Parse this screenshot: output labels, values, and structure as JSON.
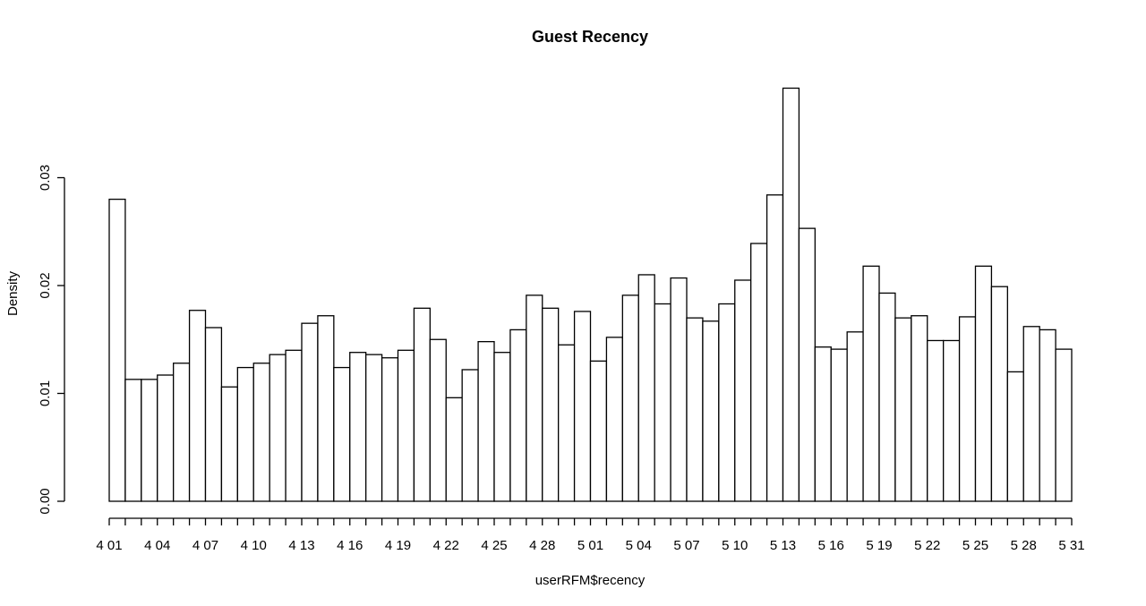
{
  "chart_data": {
    "type": "bar",
    "title": "Guest Recency",
    "xlabel": "userRFM$recency",
    "ylabel": "Density",
    "ylim": [
      0,
      0.0385
    ],
    "y_ticks": [
      "0.00",
      "0.01",
      "0.02",
      "0.03"
    ],
    "y_tick_values": [
      0,
      0.01,
      0.02,
      0.03
    ],
    "x_tick_labels": [
      "4 01",
      "4 04",
      "4 07",
      "4 10",
      "4 13",
      "4 16",
      "4 19",
      "4 22",
      "4 25",
      "4 28",
      "5 01",
      "5 04",
      "5 07",
      "5 10",
      "5 13",
      "5 16",
      "5 19",
      "5 22",
      "5 25",
      "5 28",
      "5 31"
    ],
    "bin_count": 60,
    "grid": false,
    "values": [
      0.028,
      0.0113,
      0.0113,
      0.0117,
      0.0128,
      0.0177,
      0.0161,
      0.0106,
      0.0124,
      0.0128,
      0.0136,
      0.014,
      0.0165,
      0.0172,
      0.0124,
      0.0138,
      0.0136,
      0.0133,
      0.014,
      0.0179,
      0.015,
      0.0096,
      0.0122,
      0.0148,
      0.0138,
      0.0159,
      0.0191,
      0.0179,
      0.0145,
      0.0176,
      0.013,
      0.0152,
      0.0191,
      0.021,
      0.0183,
      0.0207,
      0.017,
      0.0167,
      0.0183,
      0.0205,
      0.0239,
      0.0284,
      0.0383,
      0.0253,
      0.0143,
      0.0141,
      0.0157,
      0.0218,
      0.0193,
      0.017,
      0.0172,
      0.0149,
      0.0149,
      0.0171,
      0.0218,
      0.0199,
      0.012,
      0.0162,
      0.0159,
      0.0141
    ]
  }
}
